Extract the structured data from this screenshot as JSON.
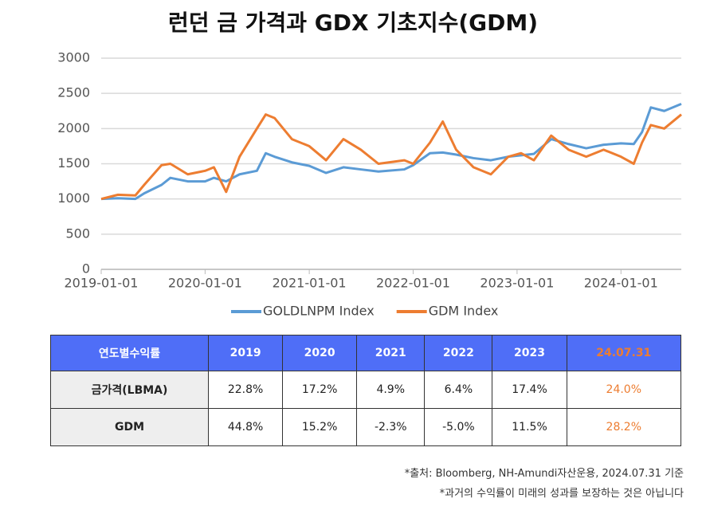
{
  "chart_data": {
    "type": "line",
    "title": "런던 금 가격과 GDX 기초지수(GDM)",
    "x": [
      "2019-01-01",
      "2019-03-01",
      "2019-05-01",
      "2019-06-01",
      "2019-08-01",
      "2019-09-01",
      "2019-11-01",
      "2020-01-01",
      "2020-02-01",
      "2020-03-15",
      "2020-05-01",
      "2020-07-01",
      "2020-08-01",
      "2020-09-01",
      "2020-11-01",
      "2021-01-01",
      "2021-03-01",
      "2021-05-01",
      "2021-07-01",
      "2021-09-01",
      "2021-12-01",
      "2022-01-01",
      "2022-03-01",
      "2022-04-15",
      "2022-06-01",
      "2022-08-01",
      "2022-10-01",
      "2022-12-01",
      "2023-01-15",
      "2023-03-01",
      "2023-05-01",
      "2023-07-01",
      "2023-09-01",
      "2023-11-01",
      "2024-01-01",
      "2024-02-15",
      "2024-03-15",
      "2024-04-15",
      "2024-06-01",
      "2024-07-31"
    ],
    "series": [
      {
        "name": "GOLDLNPM Index",
        "color": "#5b9bd5",
        "values": [
          1000,
          1010,
          1000,
          1080,
          1200,
          1300,
          1250,
          1250,
          1300,
          1250,
          1350,
          1400,
          1650,
          1600,
          1520,
          1470,
          1370,
          1450,
          1420,
          1390,
          1420,
          1480,
          1650,
          1660,
          1630,
          1580,
          1550,
          1600,
          1620,
          1640,
          1850,
          1780,
          1720,
          1770,
          1790,
          1780,
          1950,
          2300,
          2250,
          2350
        ]
      },
      {
        "name": "GDM Index",
        "color": "#ed7d31",
        "values": [
          1000,
          1060,
          1050,
          1200,
          1480,
          1500,
          1350,
          1400,
          1450,
          1100,
          1600,
          2000,
          2200,
          2150,
          1850,
          1750,
          1550,
          1850,
          1700,
          1500,
          1550,
          1500,
          1800,
          2100,
          1700,
          1450,
          1350,
          1600,
          1650,
          1550,
          1900,
          1700,
          1600,
          1700,
          1600,
          1500,
          1800,
          2050,
          2000,
          2200
        ]
      }
    ],
    "xlim": [
      "2019-01-01",
      "2024-07-31"
    ],
    "xticks": [
      "2019-01-01",
      "2020-01-01",
      "2021-01-01",
      "2022-01-01",
      "2023-01-01",
      "2024-01-01"
    ],
    "ylim": [
      0,
      3000
    ],
    "yticks": [
      0,
      500,
      1000,
      1500,
      2000,
      2500,
      3000
    ],
    "grid": true
  },
  "table": {
    "header": [
      "연도별수익률",
      "2019",
      "2020",
      "2021",
      "2022",
      "2023",
      "24.07.31"
    ],
    "rows": [
      [
        "금가격(LBMA)",
        "22.8%",
        "17.2%",
        "4.9%",
        "6.4%",
        "17.4%",
        "24.0%"
      ],
      [
        "GDM",
        "44.8%",
        "15.2%",
        "-2.3%",
        "-5.0%",
        "11.5%",
        "28.2%"
      ]
    ]
  },
  "notes": [
    "*출처: Bloomberg, NH-Amundi자산운용, 2024.07.31 기준",
    "*과거의 수익률이 미래의 성과를 보장하는 것은 아닙니다"
  ]
}
